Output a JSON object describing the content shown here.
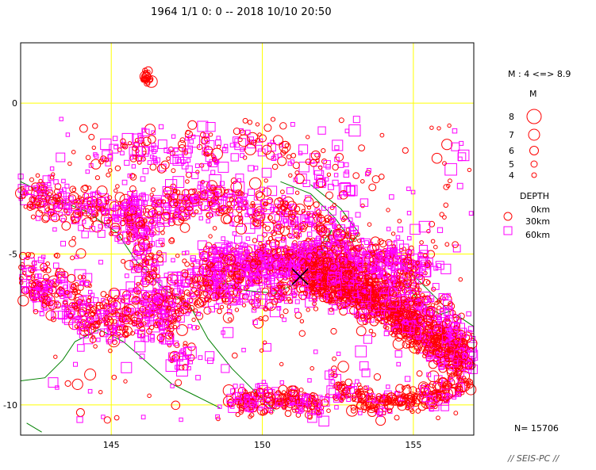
{
  "title": "1964 1/1  0: 0 -- 2018 10/10 20:50",
  "map": {
    "lon_range": [
      142.0,
      157.0
    ],
    "lat_range": [
      -11.0,
      2.0
    ],
    "lon_ticks": [
      {
        "value": 145,
        "label": "145"
      },
      {
        "value": 150,
        "label": "150"
      },
      {
        "value": 155,
        "label": "155"
      }
    ],
    "lat_ticks": [
      {
        "value": 0,
        "label": "0"
      },
      {
        "value": -5,
        "label": "-5"
      },
      {
        "value": -10,
        "label": "-10"
      }
    ],
    "grid": true,
    "grid_color": "#ffff00",
    "coast_color": "#008000",
    "shallow_color": "#ff0000",
    "deep_color": "#ff00ff",
    "marker": {
      "lon": 151.25,
      "lat": -5.75,
      "symbol": "X"
    }
  },
  "legend": {
    "mag_range": "M : 4 <=> 8.9",
    "mag_title": "M",
    "mag_items": [
      {
        "label": "8",
        "mag": 8
      },
      {
        "label": "7",
        "mag": 7
      },
      {
        "label": "6",
        "mag": 6
      },
      {
        "label": "5",
        "mag": 5
      },
      {
        "label": "4",
        "mag": 4
      }
    ],
    "depth_title": "DEPTH",
    "depth_items": [
      {
        "label": "0km",
        "symbol": "none"
      },
      {
        "label": "30km",
        "symbol": "circle"
      },
      {
        "label": "60km",
        "symbol": "square"
      }
    ]
  },
  "count": "N= 15706",
  "footer": "// SEIS-PC //"
}
